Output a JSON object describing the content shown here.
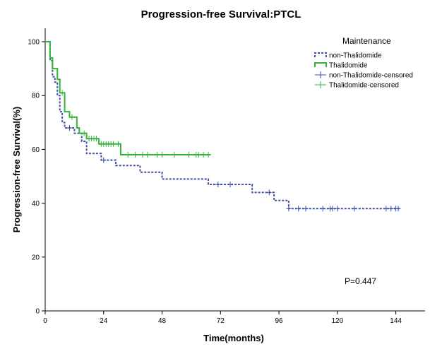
{
  "chart_data": {
    "type": "line",
    "subtype": "kaplan-meier-step",
    "title": "Progression-free Survival:PTCL",
    "xlabel": "Time(months)",
    "ylabel": "Progression-free Survival(%)",
    "xlim": [
      0,
      156
    ],
    "ylim": [
      0,
      105
    ],
    "xticks": [
      0,
      24,
      48,
      72,
      96,
      120,
      144
    ],
    "yticks": [
      0,
      20,
      40,
      60,
      80,
      100
    ],
    "grid": false,
    "legend": {
      "title": "Maintenance",
      "position": "top-right",
      "entries": [
        {
          "label": "non-Thalidomide",
          "kind": "line",
          "color": "#3f4fa8",
          "style": "dashed"
        },
        {
          "label": "Thalidomide",
          "kind": "line",
          "color": "#33b33a",
          "style": "solid"
        },
        {
          "label": "non-Thalidomide-censored",
          "kind": "censor",
          "color": "#3f4fa8"
        },
        {
          "label": "Thalidomide-censored",
          "kind": "censor",
          "color": "#33b33a"
        }
      ]
    },
    "annotation": "P=0.447",
    "series": [
      {
        "name": "non-Thalidomide",
        "color": "#3f4fa8",
        "style": "dashed",
        "steps": [
          {
            "x": 0,
            "y": 100
          },
          {
            "x": 2,
            "y": 93
          },
          {
            "x": 3,
            "y": 87
          },
          {
            "x": 4,
            "y": 85
          },
          {
            "x": 5,
            "y": 80
          },
          {
            "x": 6,
            "y": 74
          },
          {
            "x": 7,
            "y": 70
          },
          {
            "x": 8,
            "y": 68
          },
          {
            "x": 12,
            "y": 66
          },
          {
            "x": 15,
            "y": 63
          },
          {
            "x": 17,
            "y": 58.5
          },
          {
            "x": 23,
            "y": 56
          },
          {
            "x": 29,
            "y": 54
          },
          {
            "x": 39,
            "y": 51.5
          },
          {
            "x": 48,
            "y": 49
          },
          {
            "x": 67,
            "y": 47
          },
          {
            "x": 85,
            "y": 44
          },
          {
            "x": 94,
            "y": 41
          },
          {
            "x": 100,
            "y": 38
          }
        ],
        "end_x": 146,
        "censored": [
          {
            "x": 10,
            "y": 68
          },
          {
            "x": 24,
            "y": 56
          },
          {
            "x": 71,
            "y": 47
          },
          {
            "x": 76,
            "y": 47
          },
          {
            "x": 92,
            "y": 44
          },
          {
            "x": 100,
            "y": 38
          },
          {
            "x": 104,
            "y": 38
          },
          {
            "x": 107,
            "y": 38
          },
          {
            "x": 114,
            "y": 38
          },
          {
            "x": 117,
            "y": 38
          },
          {
            "x": 118,
            "y": 38
          },
          {
            "x": 120,
            "y": 38
          },
          {
            "x": 127,
            "y": 38
          },
          {
            "x": 140,
            "y": 38
          },
          {
            "x": 142,
            "y": 38
          },
          {
            "x": 144,
            "y": 38
          },
          {
            "x": 145,
            "y": 38
          }
        ]
      },
      {
        "name": "Thalidomide",
        "color": "#33b33a",
        "style": "solid",
        "steps": [
          {
            "x": 0,
            "y": 100
          },
          {
            "x": 2,
            "y": 94
          },
          {
            "x": 3,
            "y": 90
          },
          {
            "x": 5,
            "y": 86
          },
          {
            "x": 6,
            "y": 81
          },
          {
            "x": 8,
            "y": 74
          },
          {
            "x": 10,
            "y": 72
          },
          {
            "x": 13,
            "y": 68
          },
          {
            "x": 14,
            "y": 66
          },
          {
            "x": 17,
            "y": 64
          },
          {
            "x": 22,
            "y": 62
          },
          {
            "x": 31,
            "y": 58
          }
        ],
        "end_x": 68,
        "censored": [
          {
            "x": 7,
            "y": 81
          },
          {
            "x": 11,
            "y": 72
          },
          {
            "x": 16,
            "y": 66
          },
          {
            "x": 18,
            "y": 64
          },
          {
            "x": 19,
            "y": 64
          },
          {
            "x": 20,
            "y": 64
          },
          {
            "x": 21,
            "y": 64
          },
          {
            "x": 23,
            "y": 62
          },
          {
            "x": 24,
            "y": 62
          },
          {
            "x": 25,
            "y": 62
          },
          {
            "x": 26,
            "y": 62
          },
          {
            "x": 27,
            "y": 62
          },
          {
            "x": 28,
            "y": 62
          },
          {
            "x": 30,
            "y": 62
          },
          {
            "x": 34,
            "y": 58
          },
          {
            "x": 37,
            "y": 58
          },
          {
            "x": 40,
            "y": 58
          },
          {
            "x": 42,
            "y": 58
          },
          {
            "x": 46,
            "y": 58
          },
          {
            "x": 48,
            "y": 58
          },
          {
            "x": 53,
            "y": 58
          },
          {
            "x": 59,
            "y": 58
          },
          {
            "x": 62,
            "y": 58
          },
          {
            "x": 63,
            "y": 58
          },
          {
            "x": 65,
            "y": 58
          },
          {
            "x": 67,
            "y": 58
          }
        ]
      }
    ]
  }
}
